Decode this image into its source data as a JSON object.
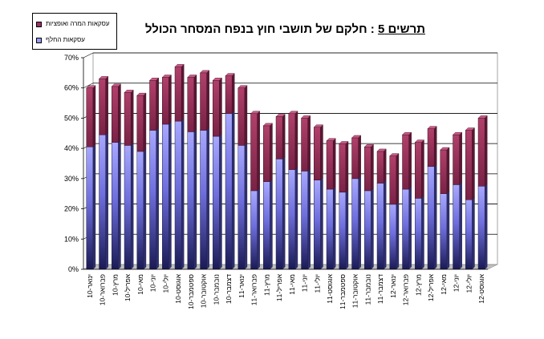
{
  "chart_data": {
    "type": "bar",
    "stacked": true,
    "title_prefix": "תרשים 5",
    "title_sep": " : ",
    "title_main": "חלקם של תושבי חוץ בנפח המסחר הכולל",
    "ylim": [
      0,
      70
    ],
    "yticks": [
      "0%",
      "10%",
      "20%",
      "30%",
      "40%",
      "50%",
      "60%",
      "70%"
    ],
    "grid": true,
    "legend_position": "top-left",
    "categories": [
      "ינואר-10",
      "פברואר-10",
      "מרץ-10",
      "אפריל-10",
      "מאי-10",
      "יוני-10",
      "יולי-10",
      "אוגוסט-10",
      "ספטמבר-10",
      "אוקטובר-10",
      "נובמבר-10",
      "דצמבר-10",
      "ינואר-11",
      "פברואר-11",
      "מרץ-11",
      "אפריל-11",
      "מאי-11",
      "יוני-11",
      "יולי-11",
      "אוגוסט-11",
      "ספטמבר-11",
      "אוקטובר-11",
      "נובמבר-11",
      "דצמבר-11",
      "ינואר-12",
      "פברואר-12",
      "מרץ-12",
      "אפריל-12",
      "מאי-12",
      "יוני-12",
      "יולי-12",
      "אוגוסט-12"
    ],
    "series": [
      {
        "name": "עסקאות החלף",
        "color": "#9999ff",
        "values": [
          40.5,
          44.5,
          42,
          41,
          39,
          46,
          48,
          49,
          45.5,
          46,
          44,
          51.5,
          41,
          26,
          29,
          36.5,
          33,
          32.5,
          29.5,
          26.5,
          25.5,
          30,
          26,
          28.5,
          21.5,
          26.5,
          23.5,
          34,
          25,
          28,
          23,
          27.5
        ]
      },
      {
        "name": "עסקאות המרה ואופציות",
        "color": "#993366",
        "values": [
          19.5,
          18.5,
          18.5,
          17.5,
          18.5,
          16.5,
          15.5,
          18,
          18,
          19,
          18.5,
          12.5,
          19,
          25.5,
          18.5,
          14,
          18.5,
          17.5,
          17.5,
          16,
          16,
          13.5,
          14.5,
          10.5,
          16,
          18,
          18.5,
          12.5,
          14.5,
          16.5,
          23,
          22.5
        ]
      }
    ]
  }
}
